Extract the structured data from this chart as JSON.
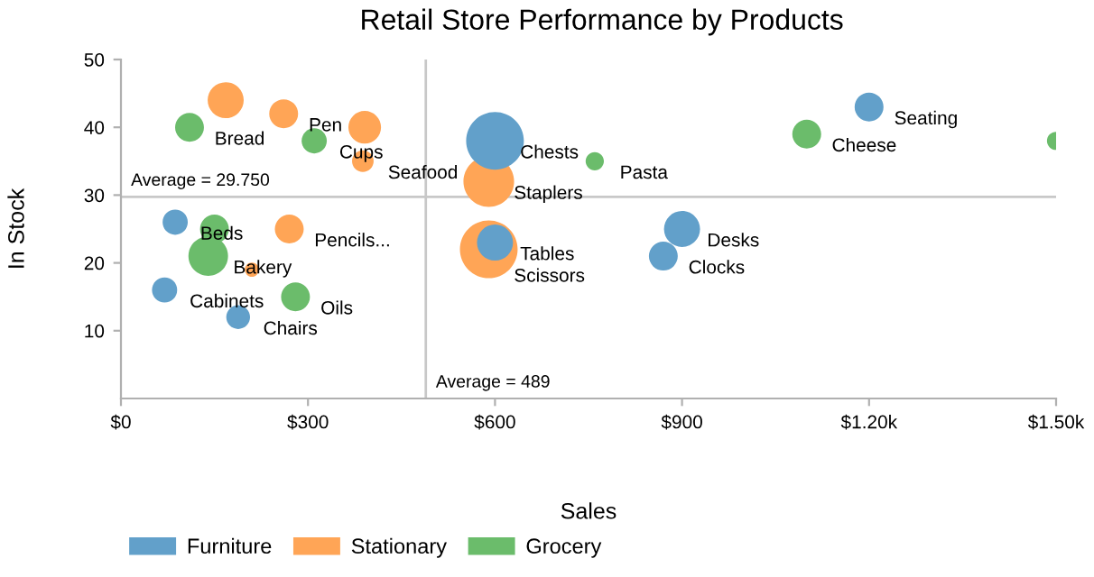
{
  "chart_data": {
    "type": "bubble",
    "title": "Retail Store Performance by Products",
    "xlabel": "Sales",
    "ylabel": "In Stock",
    "series": [
      {
        "name": "Furniture",
        "color": "#62a0ca",
        "x": [
          87,
          70,
          188,
          600,
          600,
          900,
          870,
          1200
        ],
        "values": [
          26,
          16,
          12,
          38,
          23,
          25,
          21,
          43
        ],
        "sizes": [
          0.19,
          0.19,
          0.17,
          1.0,
          0.39,
          0.39,
          0.25,
          0.25
        ]
      },
      {
        "name": "Stationary",
        "color": "#ffa556",
        "x": [
          168,
          261,
          391,
          388,
          270,
          210,
          590,
          590
        ],
        "values": [
          44,
          42,
          40,
          35,
          25,
          19,
          32,
          22
        ],
        "sizes": [
          0.39,
          0.25,
          0.32,
          0.14,
          0.25,
          0.06,
          0.77,
          1.0
        ]
      },
      {
        "name": "Grocery",
        "color": "#6bbc6b",
        "x": [
          110,
          310,
          150,
          140,
          280,
          760,
          1100,
          1500
        ],
        "values": [
          40,
          38,
          25,
          21,
          15,
          35,
          39,
          38
        ],
        "sizes": [
          0.25,
          0.19,
          0.25,
          0.47,
          0.25,
          0.1,
          0.25,
          0.1
        ]
      }
    ],
    "annotations": [
      {
        "text": "Beds",
        "x": 87,
        "y": 26
      },
      {
        "text": "Cabinets",
        "x": 70,
        "y": 16
      },
      {
        "text": "Chairs",
        "x": 188,
        "y": 12
      },
      {
        "text": "Chests",
        "x": 600,
        "y": 38
      },
      {
        "text": "Tables",
        "x": 600,
        "y": 23
      },
      {
        "text": "Desks",
        "x": 900,
        "y": 25
      },
      {
        "text": "Clocks",
        "x": 870,
        "y": 21
      },
      {
        "text": "Seating",
        "x": 1200,
        "y": 43
      },
      {
        "text": "Pen",
        "x": 261,
        "y": 42
      },
      {
        "text": "Cups",
        "x": 310,
        "y": 38
      },
      {
        "text": "Seafood",
        "x": 388,
        "y": 35
      },
      {
        "text": "Pencils...",
        "x": 270,
        "y": 25
      },
      {
        "text": "Staplers",
        "x": 590,
        "y": 32
      },
      {
        "text": "Scissors",
        "x": 590,
        "y": 22
      },
      {
        "text": "Bread",
        "x": 110,
        "y": 40
      },
      {
        "text": "Bakery",
        "x": 140,
        "y": 21
      },
      {
        "text": "Oils",
        "x": 280,
        "y": 15
      },
      {
        "text": "Pasta",
        "x": 760,
        "y": 35
      },
      {
        "text": "Cheese",
        "x": 1100,
        "y": 39
      }
    ],
    "ref_lines": [
      {
        "axis": "y",
        "value": 29.75,
        "label": "Average = 29.750",
        "color": "#c8c8c8"
      },
      {
        "axis": "x",
        "value": 489,
        "label": "Average = 489",
        "color": "#c8c8c8"
      }
    ],
    "xlim": [
      0,
      1500
    ],
    "ylim": [
      0,
      50
    ],
    "xticks": [
      {
        "value": 0,
        "label": "$0"
      },
      {
        "value": 300,
        "label": "$300"
      },
      {
        "value": 600,
        "label": "$600"
      },
      {
        "value": 900,
        "label": "$900"
      },
      {
        "value": 1200,
        "label": "$1.20k"
      },
      {
        "value": 1500,
        "label": "$1.50k"
      }
    ],
    "yticks": [
      10,
      20,
      30,
      40,
      50
    ],
    "legend": "bottom left"
  }
}
